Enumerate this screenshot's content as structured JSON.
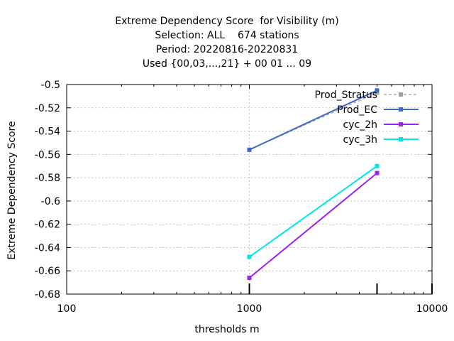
{
  "chart_data": {
    "type": "line",
    "title_lines": [
      "Extreme Dependency Score  for Visibility (m)",
      "Selection: ALL    674 stations",
      "Period: 20220816-20220831",
      "Used {00,03,...,21} + 00 01 ... 09"
    ],
    "xlabel": "thresholds m",
    "ylabel": "Extreme Dependency Score",
    "x_scale": "log",
    "xlim": [
      100,
      10000
    ],
    "ylim": [
      -0.68,
      -0.5
    ],
    "x_ticks": [
      100,
      1000,
      10000
    ],
    "x_tick_labels": [
      "100",
      "1000",
      "10000"
    ],
    "y_ticks": [
      -0.68,
      -0.66,
      -0.64,
      -0.62,
      -0.6,
      -0.58,
      -0.56,
      -0.54,
      -0.52,
      -0.5
    ],
    "y_tick_labels": [
      "-0.68",
      "-0.66",
      "-0.64",
      "-0.62",
      "-0.6",
      "-0.58",
      "-0.56",
      "-0.54",
      "-0.52",
      "-0.5"
    ],
    "grid": true,
    "legend_position": "top-right",
    "series": [
      {
        "name": "Prod_Stratus",
        "color": "#a0a0a0",
        "dashed": true,
        "x": [
          1000,
          5000
        ],
        "y": [
          -0.556,
          -0.507
        ]
      },
      {
        "name": "Prod_EC",
        "color": "#4169c8",
        "dashed": false,
        "x": [
          1000,
          5000
        ],
        "y": [
          -0.556,
          -0.505
        ]
      },
      {
        "name": "cyc_2h",
        "color": "#a020f0",
        "dashed": false,
        "x": [
          1000,
          5000
        ],
        "y": [
          -0.666,
          -0.576
        ]
      },
      {
        "name": "cyc_3h",
        "color": "#00e5e5",
        "dashed": false,
        "x": [
          1000,
          5000
        ],
        "y": [
          -0.648,
          -0.57
        ]
      }
    ],
    "observation_ticks_x": [
      1000,
      5000,
      10000
    ]
  }
}
